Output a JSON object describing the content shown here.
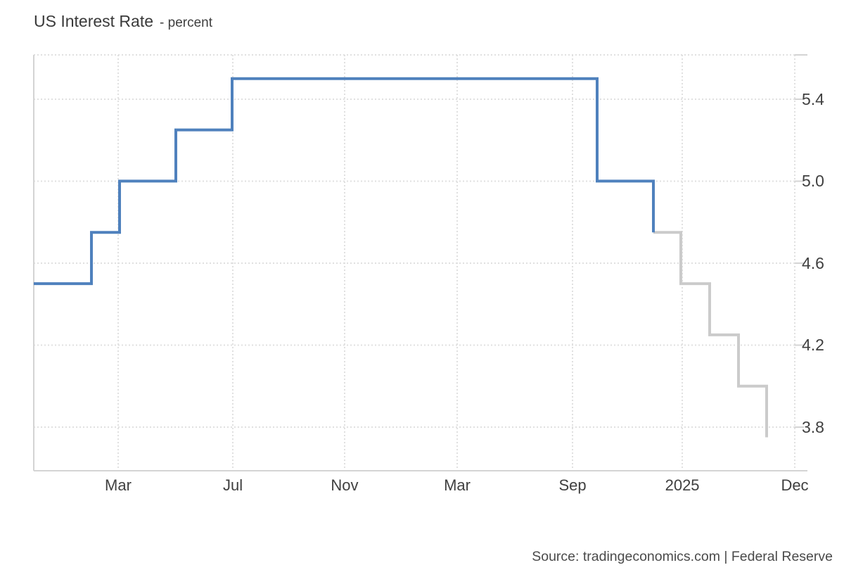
{
  "header": {
    "title": "US Interest Rate",
    "subtitle": "- percent"
  },
  "footer": {
    "source": "Source: tradingeconomics.com | Federal Reserve"
  },
  "chart_data": {
    "type": "line",
    "step_mode": "after",
    "title": "US Interest Rate",
    "subtitle": "- percent",
    "ylabel": "percent",
    "ylim": [
      3.587,
      5.616
    ],
    "grid": true,
    "y_ticks": [
      5.4,
      5.0,
      4.6,
      4.2,
      3.8
    ],
    "x_ticks": [
      {
        "label": "Mar",
        "f": 0.1109
      },
      {
        "label": "Jul",
        "f": 0.2616
      },
      {
        "label": "Nov",
        "f": 0.4085
      },
      {
        "label": "Mar",
        "f": 0.5564
      },
      {
        "label": "Sep",
        "f": 0.708
      },
      {
        "label": "2025",
        "f": 0.8522
      },
      {
        "label": "Dec",
        "f": 1.0
      }
    ],
    "series": [
      {
        "name": "forecast",
        "color": "#cbcbcb",
        "points": [
          {
            "x": 0.8142,
            "v": 4.75
          },
          {
            "x": 0.8503,
            "v": 4.5
          },
          {
            "x": 0.8882,
            "v": 4.25
          },
          {
            "x": 0.9261,
            "v": 4.0
          },
          {
            "x": 0.963,
            "v": 3.75
          }
        ]
      },
      {
        "name": "actual",
        "color": "#4f81bd",
        "points": [
          {
            "x": 0.0,
            "v": 4.5
          },
          {
            "x": 0.0758,
            "v": 4.75
          },
          {
            "x": 0.1128,
            "v": 5.0
          },
          {
            "x": 0.1867,
            "v": 5.25
          },
          {
            "x": 0.2606,
            "v": 5.5
          },
          {
            "x": 0.7403,
            "v": 5.0
          },
          {
            "x": 0.8142,
            "v": 4.75
          }
        ]
      }
    ],
    "colors": {
      "grid": "#e0e0e0",
      "border": "#d4d4d4",
      "tick_text": "#404040"
    }
  }
}
